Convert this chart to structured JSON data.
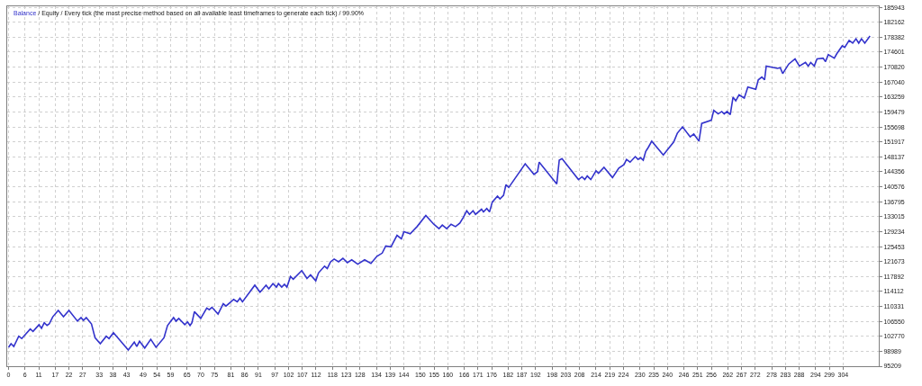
{
  "chart_data": {
    "type": "line",
    "title": "/ Equity / Every tick (the most precise method based on all available least timeframes to generate each tick) / 99.90%",
    "series": [
      {
        "name": "Balance",
        "color": "#3333cc",
        "x": [
          0,
          0.9,
          1.9,
          3.7,
          4.8,
          7.9,
          8.9,
          11.1,
          12,
          13,
          14,
          14.8,
          16.1,
          18.1,
          20,
          22,
          25.1,
          26.4,
          27.3,
          28.3,
          30.2,
          31.5,
          33.4,
          35.6,
          36.6,
          38.2,
          43.6,
          45.8,
          46.7,
          47.7,
          49.6,
          51.8,
          53.7,
          56.6,
          57.9,
          60.1,
          61,
          62,
          64.2,
          65.2,
          66.1,
          66.8,
          67.7,
          70,
          72.2,
          73.1,
          74.1,
          76.3,
          78.2,
          79.2,
          82,
          83.3,
          84.3,
          85.2,
          89.7,
          91.6,
          93.8,
          94.8,
          96.3,
          97.6,
          98.3,
          99.5,
          100.5,
          101.4,
          102.7,
          103.7,
          106.8,
          108.7,
          110,
          111.9,
          112.9,
          115.1,
          116.1,
          117.3,
          118.6,
          120.2,
          121.8,
          123.4,
          125,
          127.2,
          129.7,
          132,
          134.2,
          136.1,
          137.4,
          139.3,
          141.5,
          143.1,
          144,
          146.3,
          148.8,
          152,
          154.9,
          156.8,
          158,
          159.6,
          161.2,
          162.8,
          164.4,
          165.7,
          166.9,
          167.9,
          169.2,
          170.1,
          172.3,
          173,
          174.2,
          175.2,
          176.2,
          178.1,
          179,
          180.3,
          181.2,
          182.2,
          188.2,
          191.4,
          192.7,
          193.3,
          199.7,
          200.6,
          201.6,
          207.6,
          208.9,
          209.9,
          210.8,
          212.1,
          214,
          214.9,
          216.9,
          220,
          222.3,
          224.2,
          225.1,
          226.4,
          228.3,
          229.3,
          230.2,
          231.2,
          232.1,
          233.1,
          234.3,
          238.5,
          242.3,
          243.6,
          245.5,
          248.3,
          249.6,
          251.5,
          252.5,
          256,
          256.9,
          258.5,
          259.8,
          260.7,
          261.7,
          262.9,
          263.9,
          264.9,
          266.1,
          268,
          269.3,
          272.2,
          273.1,
          274.4,
          275.4,
          276,
          280.1,
          281.1,
          282,
          284.2,
          286.5,
          288.1,
          290.3,
          291.3,
          292.2,
          293.5,
          294.5,
          296.7,
          297.6,
          298.6,
          300.8,
          301.7,
          303.7,
          304.6,
          306.2,
          307.5,
          308.7,
          309.7,
          310.7,
          311.9,
          313.8
        ],
        "values": [
          100000,
          100900,
          100200,
          102800,
          102200,
          104600,
          104000,
          105700,
          104800,
          106200,
          105500,
          105900,
          107700,
          109300,
          107700,
          109300,
          106600,
          107500,
          106800,
          107500,
          105900,
          102400,
          100900,
          102800,
          102200,
          103700,
          99300,
          101300,
          100200,
          101500,
          99800,
          102000,
          100000,
          102400,
          105500,
          107500,
          106600,
          107300,
          105700,
          106400,
          105500,
          106200,
          109000,
          107300,
          109900,
          109500,
          110100,
          108400,
          111000,
          110400,
          112100,
          111500,
          112400,
          111500,
          115700,
          113900,
          115700,
          114800,
          116100,
          115200,
          116100,
          115200,
          115900,
          115200,
          117900,
          117200,
          119400,
          117400,
          118300,
          116800,
          118800,
          120500,
          119900,
          121600,
          122300,
          121600,
          122500,
          121400,
          122100,
          121000,
          122100,
          121200,
          123000,
          123800,
          125600,
          125400,
          128300,
          127400,
          129200,
          128700,
          130500,
          133300,
          131100,
          130000,
          130900,
          130000,
          131100,
          130500,
          131400,
          132900,
          134500,
          133600,
          134500,
          133600,
          134900,
          134200,
          135100,
          134200,
          136700,
          138200,
          137500,
          138400,
          141100,
          140400,
          146400,
          143700,
          144400,
          146800,
          141300,
          147300,
          147700,
          142400,
          143100,
          142400,
          143300,
          142400,
          144600,
          144000,
          145500,
          142900,
          145300,
          146200,
          147500,
          146800,
          148200,
          147500,
          147900,
          147300,
          149500,
          150600,
          152100,
          148600,
          151900,
          154100,
          155700,
          153200,
          153900,
          152100,
          156600,
          157400,
          159900,
          159000,
          159600,
          159000,
          159600,
          158800,
          163200,
          162300,
          163800,
          163000,
          165800,
          165200,
          167600,
          168300,
          167600,
          171100,
          170500,
          170700,
          169200,
          171600,
          172900,
          171100,
          172000,
          171100,
          172000,
          171100,
          172900,
          173100,
          172200,
          174000,
          173100,
          174200,
          176200,
          175800,
          177600,
          176900,
          178000,
          176900,
          178000,
          176900,
          178700
        ]
      }
    ],
    "xlim": [
      -0.5,
      317
    ],
    "ylim": [
      95209,
      186200
    ],
    "xticks": [
      0,
      6,
      11,
      17,
      22,
      27,
      33,
      38,
      43,
      49,
      54,
      59,
      65,
      70,
      75,
      81,
      86,
      91,
      97,
      102,
      107,
      112,
      118,
      123,
      128,
      134,
      139,
      144,
      150,
      155,
      160,
      166,
      171,
      176,
      182,
      187,
      192,
      198,
      203,
      208,
      214,
      219,
      224,
      230,
      235,
      240,
      246,
      251,
      256,
      262,
      267,
      272,
      278,
      283,
      288,
      294,
      299,
      304
    ],
    "yticks": [
      95209,
      98989,
      102770,
      106550,
      110331,
      114112,
      117892,
      121673,
      125453,
      129234,
      133015,
      136795,
      140576,
      144356,
      148137,
      151917,
      155698,
      159479,
      163259,
      167040,
      170820,
      174601,
      178382,
      182162,
      185943
    ],
    "grid": true,
    "legend": "top left",
    "marker": "none",
    "line_style": "solid"
  }
}
